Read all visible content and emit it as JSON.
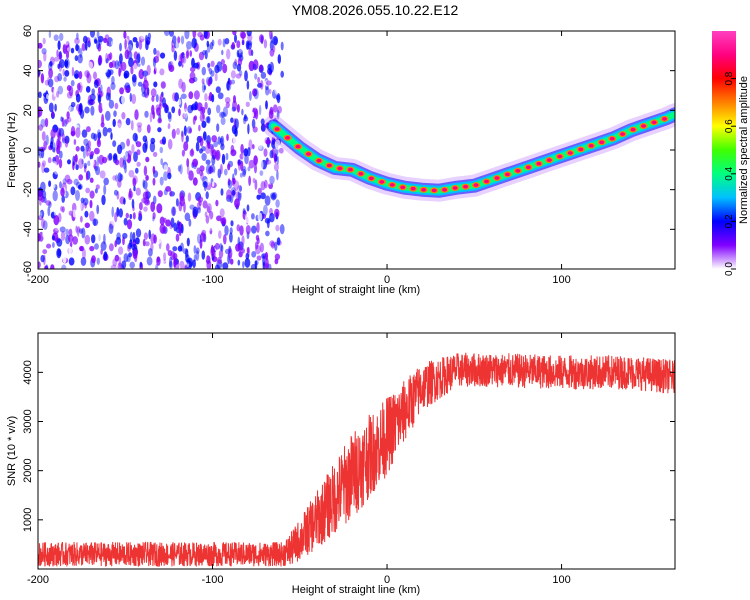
{
  "chart_data": [
    {
      "type": "heatmap",
      "title": "YM08.2026.055.10.22.E12",
      "xlabel": "Height of straight line (km)",
      "ylabel": "Frequency (Hz)",
      "xlim": [
        -200,
        165
      ],
      "ylim": [
        -60,
        60
      ],
      "xticks": [
        -200,
        -100,
        0,
        100
      ],
      "yticks": [
        -60,
        -40,
        -20,
        0,
        20,
        40,
        60
      ],
      "noise_region": {
        "x_range": [
          -200,
          -60
        ],
        "y_range": [
          -60,
          60
        ],
        "colormap_value_range": [
          0.02,
          0.25
        ]
      },
      "signal_trace": {
        "description": "frequency of peak amplitude vs height",
        "x": [
          -65,
          -50,
          -40,
          -30,
          -20,
          -10,
          0,
          10,
          20,
          30,
          40,
          50,
          60,
          70,
          80,
          90,
          100,
          110,
          120,
          130,
          140,
          150,
          160,
          165
        ],
        "y": [
          12,
          1,
          -5,
          -9,
          -10,
          -14,
          -17,
          -19,
          -20,
          -20.5,
          -19,
          -18,
          -15,
          -12,
          -9,
          -6,
          -3,
          0,
          3,
          6,
          10,
          13,
          16,
          18
        ],
        "peak_amplitude": 0.9
      },
      "colorbar": {
        "label": "Normalized spectral amplitude",
        "ticks": [
          0.0,
          0.2,
          0.4,
          0.6,
          0.8
        ],
        "range": [
          0,
          1
        ],
        "colors": [
          "#ffffff",
          "#8000ff",
          "#0000ff",
          "#00c0ff",
          "#00ff80",
          "#40ff00",
          "#ffff00",
          "#ff8000",
          "#ff0000",
          "#ff0080",
          "#ff40c0"
        ]
      }
    },
    {
      "type": "line",
      "xlabel": "Height of straight line (km)",
      "ylabel": "SNR (10 * v/v)",
      "xlim": [
        -200,
        165
      ],
      "ylim": [
        0,
        4800
      ],
      "xticks": [
        -200,
        -100,
        0,
        100
      ],
      "yticks": [
        1000,
        2000,
        3000,
        4000
      ],
      "series": [
        {
          "name": "SNR",
          "color": "#ee3333",
          "x": [
            -200,
            -150,
            -100,
            -60,
            -55,
            -40,
            -20,
            0,
            20,
            40,
            60,
            100,
            140,
            165
          ],
          "y": [
            300,
            300,
            300,
            300,
            400,
            1000,
            1900,
            2700,
            3700,
            4050,
            4050,
            4000,
            4000,
            3900
          ],
          "noise_amplitude": [
            250,
            250,
            250,
            250,
            350,
            600,
            900,
            800,
            500,
            350,
            350,
            350,
            350,
            350
          ]
        }
      ]
    }
  ]
}
